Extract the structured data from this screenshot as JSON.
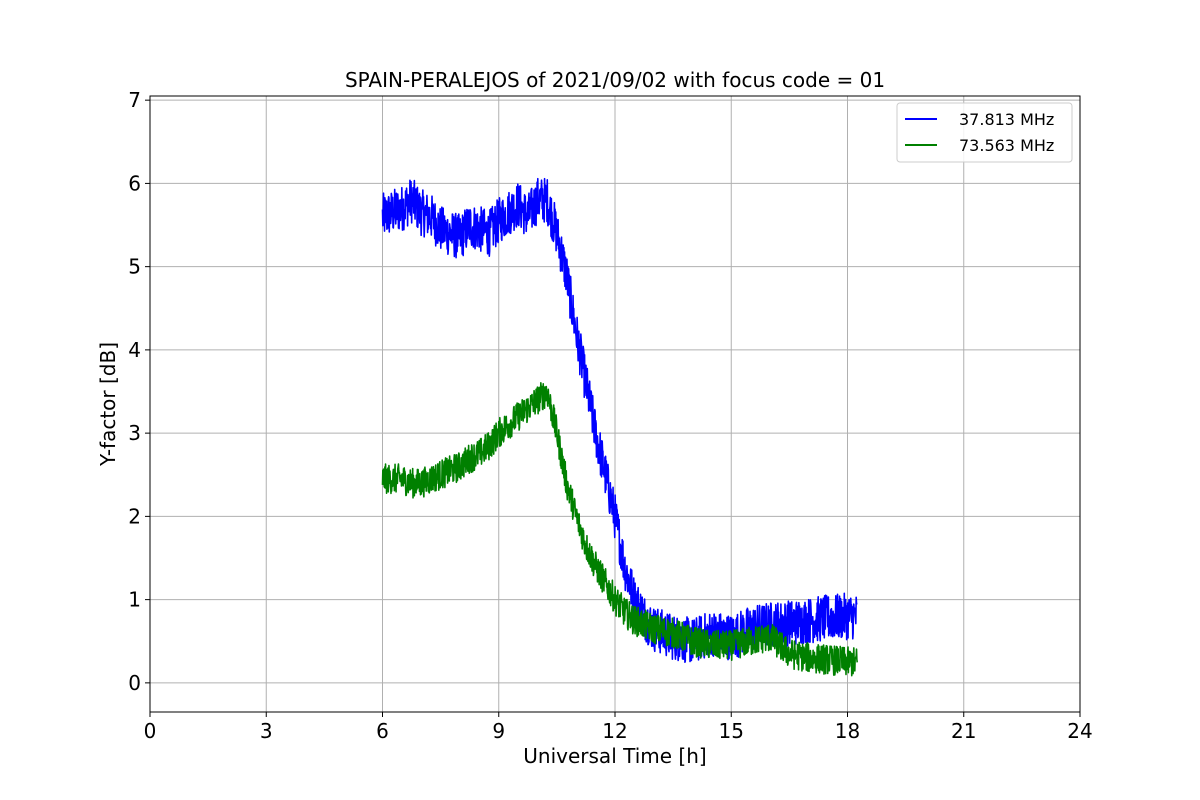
{
  "chart_data": {
    "type": "line",
    "title": "SPAIN-PERALEJOS of 2021/09/02 with focus code = 01",
    "xlabel": "Universal Time [h]",
    "ylabel": "Y-factor [dB]",
    "xlim": [
      0,
      24
    ],
    "ylim": [
      -0.35,
      7.05
    ],
    "xticks": [
      "0",
      "3",
      "6",
      "9",
      "12",
      "15",
      "18",
      "21",
      "24"
    ],
    "yticks": [
      "0",
      "1",
      "2",
      "3",
      "4",
      "5",
      "6",
      "7"
    ],
    "grid": true,
    "legend_position": "top-right",
    "colors": {
      "blue": "#0000ff",
      "green": "#008000"
    },
    "series": [
      {
        "name": "37.813 MHz",
        "color": "#0000ff",
        "x": [
          6.0,
          6.25,
          6.5,
          6.75,
          7.0,
          7.25,
          7.5,
          7.75,
          8.0,
          8.25,
          8.5,
          8.75,
          9.0,
          9.25,
          9.5,
          9.75,
          10.0,
          10.25,
          10.5,
          10.75,
          11.0,
          11.25,
          11.5,
          11.75,
          12.0,
          12.25,
          12.5,
          12.75,
          13.0,
          13.5,
          14.0,
          14.5,
          15.0,
          15.5,
          16.0,
          16.5,
          17.0,
          17.5,
          18.0,
          18.25
        ],
        "y": [
          5.6,
          5.65,
          5.7,
          5.8,
          5.65,
          5.6,
          5.45,
          5.4,
          5.35,
          5.5,
          5.45,
          5.4,
          5.55,
          5.65,
          5.75,
          5.6,
          5.8,
          5.8,
          5.4,
          4.9,
          4.2,
          3.6,
          3.0,
          2.5,
          2.0,
          1.4,
          1.0,
          0.8,
          0.65,
          0.55,
          0.5,
          0.6,
          0.55,
          0.65,
          0.7,
          0.72,
          0.75,
          0.78,
          0.8,
          0.8
        ],
        "noise": 0.28
      },
      {
        "name": "73.563 MHz",
        "color": "#008000",
        "x": [
          6.0,
          6.25,
          6.5,
          6.75,
          7.0,
          7.25,
          7.5,
          7.75,
          8.0,
          8.25,
          8.5,
          8.75,
          9.0,
          9.25,
          9.5,
          9.75,
          10.0,
          10.25,
          10.5,
          10.75,
          11.0,
          11.25,
          11.5,
          11.75,
          12.0,
          12.25,
          12.5,
          12.75,
          13.0,
          13.5,
          14.0,
          14.5,
          15.0,
          15.5,
          16.0,
          16.5,
          17.0,
          17.5,
          18.0,
          18.25
        ],
        "y": [
          2.45,
          2.45,
          2.45,
          2.4,
          2.4,
          2.45,
          2.5,
          2.55,
          2.6,
          2.7,
          2.75,
          2.85,
          3.0,
          3.1,
          3.2,
          3.3,
          3.4,
          3.5,
          3.0,
          2.4,
          2.0,
          1.65,
          1.4,
          1.2,
          1.0,
          0.85,
          0.75,
          0.7,
          0.65,
          0.6,
          0.5,
          0.45,
          0.45,
          0.5,
          0.55,
          0.35,
          0.3,
          0.28,
          0.25,
          0.25
        ],
        "noise": 0.18
      }
    ]
  }
}
